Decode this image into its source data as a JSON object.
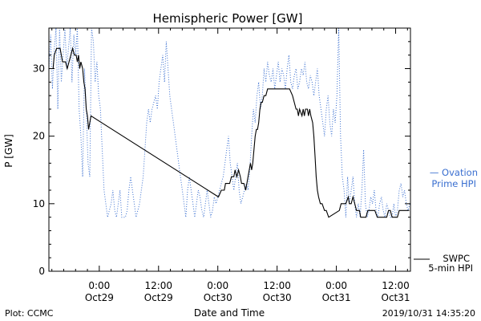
{
  "chart_data": {
    "type": "line",
    "title": "Hemispheric Power [GW]",
    "xlabel": "Date and Time",
    "ylabel": "P [GW]",
    "x_unit": "hours",
    "xlim": [
      -2.5,
      58.5
    ],
    "ylim": [
      0,
      36
    ],
    "grid": false,
    "legend": "right",
    "y_ticks": [
      0,
      10,
      20,
      30
    ],
    "x_ticks": [
      {
        "x": 6,
        "time": "0:00",
        "date": "Oct29"
      },
      {
        "x": 16,
        "time": "12:00",
        "date": "Oct29"
      },
      {
        "x": 26,
        "time": "0:00",
        "date": "Oct30"
      },
      {
        "x": 36,
        "time": "12:00",
        "date": "Oct30"
      },
      {
        "x": 46,
        "time": "0:00",
        "date": "Oct31"
      },
      {
        "x": 56,
        "time": "12:00",
        "date": "Oct31"
      }
    ],
    "series": [
      {
        "name": "Ovation Prime HPI",
        "legend_lines": [
          "— Ovation",
          "Prime HPI"
        ],
        "color": "#3a6fd0",
        "style": "dotted",
        "points": [
          [
            -2.5,
            30
          ],
          [
            -2.2,
            35
          ],
          [
            -1.9,
            27
          ],
          [
            -1.6,
            33
          ],
          [
            -1.3,
            36
          ],
          [
            -1.0,
            24
          ],
          [
            -0.7,
            36
          ],
          [
            -0.4,
            28
          ],
          [
            -0.1,
            32
          ],
          [
            0.2,
            36
          ],
          [
            0.5,
            30
          ],
          [
            0.8,
            33
          ],
          [
            1.1,
            36
          ],
          [
            1.4,
            28
          ],
          [
            1.7,
            35
          ],
          [
            2.0,
            32
          ],
          [
            2.3,
            36
          ],
          [
            2.6,
            24
          ],
          [
            2.9,
            20
          ],
          [
            3.2,
            14
          ],
          [
            3.5,
            30
          ],
          [
            3.8,
            24
          ],
          [
            4.1,
            16
          ],
          [
            4.4,
            14
          ],
          [
            4.7,
            36
          ],
          [
            5.0,
            34
          ],
          [
            5.3,
            28
          ],
          [
            5.6,
            31
          ],
          [
            5.9,
            26
          ],
          [
            6.2,
            24
          ],
          [
            6.5,
            18
          ],
          [
            6.8,
            12
          ],
          [
            7.1,
            10
          ],
          [
            7.4,
            8
          ],
          [
            7.7,
            9
          ],
          [
            8.0,
            10
          ],
          [
            8.3,
            12
          ],
          [
            8.6,
            9
          ],
          [
            8.9,
            8
          ],
          [
            9.2,
            10
          ],
          [
            9.5,
            12
          ],
          [
            9.8,
            8
          ],
          [
            10.1,
            8
          ],
          [
            10.4,
            8
          ],
          [
            10.7,
            9
          ],
          [
            11.0,
            12
          ],
          [
            11.3,
            14
          ],
          [
            11.6,
            12
          ],
          [
            11.9,
            10
          ],
          [
            12.2,
            8
          ],
          [
            12.5,
            9
          ],
          [
            12.8,
            10
          ],
          [
            13.1,
            12
          ],
          [
            13.4,
            14
          ],
          [
            13.7,
            18
          ],
          [
            14.0,
            22
          ],
          [
            14.3,
            24
          ],
          [
            14.6,
            22
          ],
          [
            14.9,
            24
          ],
          [
            15.2,
            25
          ],
          [
            15.5,
            26
          ],
          [
            15.8,
            24
          ],
          [
            16.1,
            28
          ],
          [
            16.4,
            30
          ],
          [
            16.7,
            32
          ],
          [
            17.0,
            28
          ],
          [
            17.3,
            34
          ],
          [
            17.6,
            30
          ],
          [
            17.9,
            26
          ],
          [
            18.2,
            24
          ],
          [
            18.5,
            22
          ],
          [
            18.8,
            20
          ],
          [
            19.1,
            18
          ],
          [
            19.4,
            16
          ],
          [
            19.7,
            14
          ],
          [
            20.0,
            12
          ],
          [
            20.3,
            10
          ],
          [
            20.6,
            8
          ],
          [
            20.9,
            12
          ],
          [
            21.2,
            14
          ],
          [
            21.5,
            12
          ],
          [
            21.8,
            10
          ],
          [
            22.1,
            8
          ],
          [
            22.4,
            10
          ],
          [
            22.7,
            12
          ],
          [
            23.0,
            11
          ],
          [
            23.3,
            9
          ],
          [
            23.6,
            8
          ],
          [
            23.9,
            10
          ],
          [
            24.2,
            12
          ],
          [
            24.5,
            10
          ],
          [
            24.8,
            8
          ],
          [
            25.1,
            9
          ],
          [
            25.4,
            11
          ],
          [
            25.7,
            10
          ],
          [
            26.0,
            11
          ],
          [
            26.3,
            12
          ],
          [
            26.6,
            13
          ],
          [
            26.9,
            14
          ],
          [
            27.2,
            16
          ],
          [
            27.5,
            18
          ],
          [
            27.8,
            20
          ],
          [
            28.1,
            16
          ],
          [
            28.4,
            14
          ],
          [
            28.7,
            12
          ],
          [
            29.0,
            14
          ],
          [
            29.3,
            16
          ],
          [
            29.6,
            12
          ],
          [
            29.9,
            10
          ],
          [
            30.2,
            11
          ],
          [
            30.5,
            12
          ],
          [
            30.8,
            13
          ],
          [
            31.1,
            12
          ],
          [
            31.4,
            15
          ],
          [
            31.7,
            20
          ],
          [
            32.0,
            24
          ],
          [
            32.3,
            22
          ],
          [
            32.6,
            26
          ],
          [
            32.9,
            28
          ],
          [
            33.2,
            24
          ],
          [
            33.5,
            26
          ],
          [
            33.8,
            30
          ],
          [
            34.1,
            28
          ],
          [
            34.4,
            31
          ],
          [
            34.7,
            29
          ],
          [
            35.0,
            28
          ],
          [
            35.3,
            30
          ],
          [
            35.6,
            27
          ],
          [
            35.9,
            29
          ],
          [
            36.2,
            31
          ],
          [
            36.5,
            28
          ],
          [
            36.8,
            30
          ],
          [
            37.1,
            29
          ],
          [
            37.4,
            27
          ],
          [
            37.7,
            30
          ],
          [
            38.0,
            32
          ],
          [
            38.3,
            28
          ],
          [
            38.6,
            27
          ],
          [
            38.9,
            29
          ],
          [
            39.2,
            30
          ],
          [
            39.5,
            27
          ],
          [
            39.8,
            28
          ],
          [
            40.1,
            30
          ],
          [
            40.4,
            29
          ],
          [
            40.7,
            31
          ],
          [
            41.0,
            28
          ],
          [
            41.3,
            27
          ],
          [
            41.6,
            29
          ],
          [
            41.9,
            28
          ],
          [
            42.2,
            26
          ],
          [
            42.5,
            28
          ],
          [
            42.8,
            30
          ],
          [
            43.1,
            26
          ],
          [
            43.4,
            24
          ],
          [
            43.7,
            22
          ],
          [
            44.0,
            20
          ],
          [
            44.3,
            24
          ],
          [
            44.6,
            26
          ],
          [
            44.9,
            22
          ],
          [
            45.2,
            20
          ],
          [
            45.5,
            24
          ],
          [
            45.8,
            22
          ],
          [
            46.1,
            26
          ],
          [
            46.4,
            36
          ],
          [
            46.7,
            20
          ],
          [
            47.0,
            14
          ],
          [
            47.3,
            12
          ],
          [
            47.6,
            8
          ],
          [
            47.9,
            14
          ],
          [
            48.2,
            10
          ],
          [
            48.5,
            12
          ],
          [
            48.8,
            14
          ],
          [
            49.1,
            10
          ],
          [
            49.4,
            8
          ],
          [
            49.7,
            10
          ],
          [
            50.0,
            8
          ],
          [
            50.3,
            12
          ],
          [
            50.6,
            18
          ],
          [
            50.9,
            10
          ],
          [
            51.2,
            8
          ],
          [
            51.5,
            9
          ],
          [
            51.8,
            11
          ],
          [
            52.1,
            10
          ],
          [
            52.4,
            12
          ],
          [
            52.7,
            9
          ],
          [
            53.0,
            8
          ],
          [
            53.3,
            10
          ],
          [
            53.6,
            11
          ],
          [
            53.9,
            9
          ],
          [
            54.2,
            8
          ],
          [
            54.5,
            10
          ],
          [
            54.8,
            9
          ],
          [
            55.1,
            8
          ],
          [
            55.4,
            8
          ],
          [
            55.7,
            10
          ],
          [
            56.0,
            8
          ],
          [
            56.3,
            9
          ],
          [
            56.6,
            12
          ],
          [
            56.9,
            13
          ],
          [
            57.2,
            11
          ],
          [
            57.5,
            12
          ],
          [
            57.8,
            10
          ],
          [
            58.1,
            9
          ],
          [
            58.4,
            10
          ]
        ]
      },
      {
        "name": "SWPC 5-min HPI",
        "legend_lines": [
          "SWPC",
          "5-min HPI"
        ],
        "color": "#000000",
        "style": "solid",
        "points": [
          [
            -2.5,
            30
          ],
          [
            -1.8,
            30
          ],
          [
            -1.6,
            32
          ],
          [
            -1.2,
            33
          ],
          [
            -0.6,
            33
          ],
          [
            -0.4,
            32
          ],
          [
            -0.2,
            31
          ],
          [
            0.3,
            31
          ],
          [
            0.6,
            30
          ],
          [
            0.9,
            31
          ],
          [
            1.2,
            32
          ],
          [
            1.5,
            33
          ],
          [
            1.8,
            32
          ],
          [
            2.1,
            32
          ],
          [
            2.3,
            31
          ],
          [
            2.5,
            32
          ],
          [
            2.7,
            30
          ],
          [
            2.9,
            31
          ],
          [
            3.2,
            30
          ],
          [
            3.4,
            28
          ],
          [
            3.6,
            27
          ],
          [
            3.8,
            24
          ],
          [
            4.0,
            23
          ],
          [
            4.2,
            21
          ],
          [
            4.4,
            22
          ],
          [
            4.6,
            23
          ],
          [
            26.1,
            11
          ],
          [
            26.6,
            12
          ],
          [
            27.1,
            12
          ],
          [
            27.3,
            13
          ],
          [
            27.8,
            13
          ],
          [
            28.0,
            13
          ],
          [
            28.3,
            14
          ],
          [
            28.7,
            14
          ],
          [
            28.9,
            15
          ],
          [
            29.2,
            14
          ],
          [
            29.5,
            15
          ],
          [
            29.8,
            14
          ],
          [
            30.0,
            13
          ],
          [
            30.4,
            13
          ],
          [
            30.7,
            12
          ],
          [
            31.1,
            14
          ],
          [
            31.3,
            15
          ],
          [
            31.5,
            16
          ],
          [
            31.7,
            15
          ],
          [
            31.9,
            16
          ],
          [
            32.1,
            18
          ],
          [
            32.3,
            20
          ],
          [
            32.5,
            21
          ],
          [
            32.7,
            21
          ],
          [
            32.9,
            22
          ],
          [
            33.1,
            24
          ],
          [
            33.3,
            25
          ],
          [
            33.5,
            25
          ],
          [
            33.8,
            26
          ],
          [
            34.1,
            26
          ],
          [
            34.4,
            27
          ],
          [
            34.7,
            27
          ],
          [
            35.0,
            27
          ],
          [
            37.6,
            27
          ],
          [
            38.1,
            27
          ],
          [
            38.6,
            26
          ],
          [
            38.9,
            25
          ],
          [
            39.2,
            24
          ],
          [
            39.4,
            24
          ],
          [
            39.6,
            23
          ],
          [
            39.8,
            24
          ],
          [
            40.2,
            23
          ],
          [
            40.4,
            24
          ],
          [
            40.6,
            23
          ],
          [
            40.8,
            24
          ],
          [
            41.1,
            24
          ],
          [
            41.3,
            23
          ],
          [
            41.5,
            24
          ],
          [
            41.7,
            23
          ],
          [
            42.0,
            22
          ],
          [
            42.2,
            20
          ],
          [
            42.4,
            17
          ],
          [
            42.6,
            14
          ],
          [
            42.8,
            12
          ],
          [
            43.0,
            11
          ],
          [
            43.3,
            10
          ],
          [
            43.6,
            10
          ],
          [
            44.0,
            9
          ],
          [
            44.3,
            9
          ],
          [
            44.7,
            8
          ],
          [
            46.5,
            9
          ],
          [
            46.8,
            10
          ],
          [
            47.2,
            10
          ],
          [
            47.6,
            10
          ],
          [
            48.0,
            11
          ],
          [
            48.2,
            10
          ],
          [
            48.5,
            10
          ],
          [
            48.8,
            11
          ],
          [
            49.1,
            10
          ],
          [
            49.4,
            9
          ],
          [
            49.9,
            9
          ],
          [
            50.1,
            8
          ],
          [
            51.0,
            8
          ],
          [
            51.3,
            9
          ],
          [
            51.8,
            9
          ],
          [
            52.1,
            9
          ],
          [
            52.5,
            9
          ],
          [
            52.9,
            8
          ],
          [
            54.5,
            8
          ],
          [
            54.8,
            9
          ],
          [
            55.1,
            9
          ],
          [
            55.4,
            8
          ],
          [
            56.3,
            8
          ],
          [
            56.6,
            9
          ],
          [
            58.3,
            9
          ]
        ]
      }
    ]
  },
  "footer": {
    "plot_credit": "Plot: CCMC",
    "timestamp": "2019/10/31  14:35:20"
  }
}
